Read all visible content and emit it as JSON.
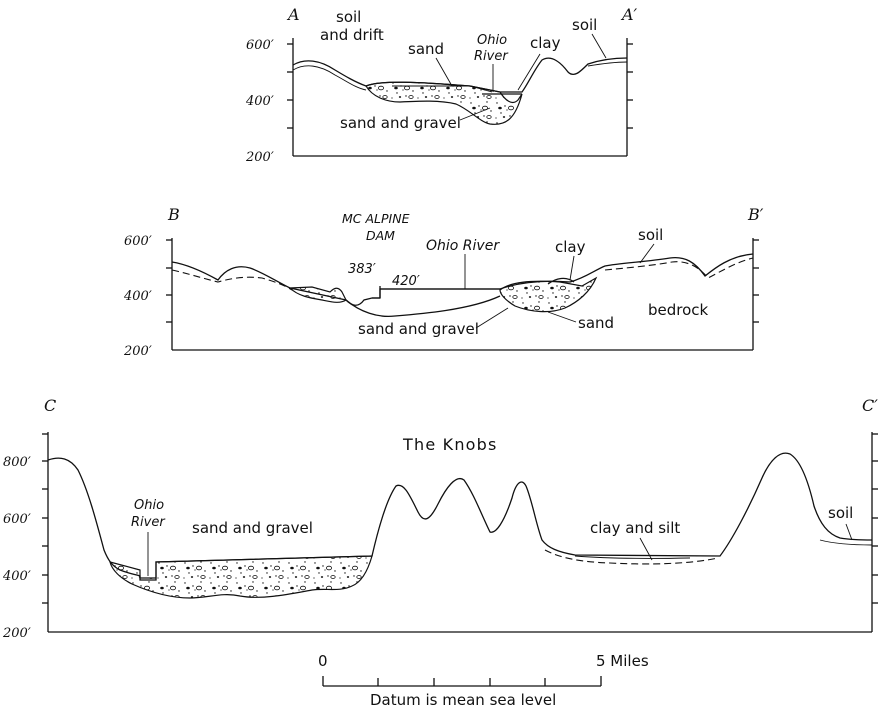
{
  "sections": {
    "a": {
      "start": "A",
      "end": "A′",
      "elev_labels": [
        "600′",
        "400′",
        "200′"
      ],
      "labels": {
        "soil_drift": [
          "soil",
          "and drift"
        ],
        "sand": "sand",
        "river": [
          "Ohio",
          "River"
        ],
        "clay": "clay",
        "soil": "soil",
        "sand_gravel": "sand and gravel"
      }
    },
    "b": {
      "start": "B",
      "end": "B′",
      "elev_labels": [
        "600′",
        "400′",
        "200′"
      ],
      "labels": {
        "dam": [
          "MC ALPINE",
          "DAM"
        ],
        "pool_low": "383′",
        "pool_high": "420′",
        "river": "Ohio River",
        "clay": "clay",
        "soil": "soil",
        "bedrock": "bedrock",
        "sand": "sand",
        "sand_gravel": "sand and gravel"
      }
    },
    "c": {
      "start": "C",
      "end": "C′",
      "elev_labels": [
        "800′",
        "600′",
        "400′",
        "200′"
      ],
      "labels": {
        "knobs": "The Knobs",
        "river": [
          "Ohio",
          "River"
        ],
        "sand_gravel": "sand and gravel",
        "clay_silt": "clay and silt",
        "soil": "soil"
      }
    }
  },
  "scale": {
    "start": "0",
    "end": "5 Miles",
    "caption": "Datum is mean sea level"
  }
}
